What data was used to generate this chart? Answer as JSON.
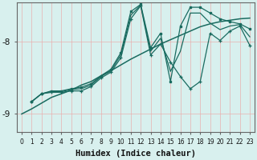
{
  "xlabel": "Humidex (Indice chaleur)",
  "xlim": [
    -0.5,
    23.5
  ],
  "ylim": [
    -9.25,
    -7.45
  ],
  "yticks": [
    -9,
    -8
  ],
  "background_color": "#d8f0ee",
  "grid_color_r": 255,
  "grid_color_g": 180,
  "grid_color_b": 180,
  "line_color": "#1a6b60",
  "line1_x": [
    0,
    1,
    2,
    3,
    4,
    5,
    6,
    7,
    8,
    9,
    10,
    11,
    12,
    13,
    14,
    15,
    16,
    17,
    18,
    19,
    20,
    21,
    22,
    23
  ],
  "line1_y": [
    -9.0,
    -8.93,
    -8.85,
    -8.77,
    -8.72,
    -8.67,
    -8.6,
    -8.55,
    -8.47,
    -8.4,
    -8.32,
    -8.24,
    -8.17,
    -8.1,
    -8.03,
    -7.97,
    -7.91,
    -7.85,
    -7.79,
    -7.75,
    -7.72,
    -7.7,
    -7.68,
    -7.67
  ],
  "line2_x": [
    1,
    2,
    3,
    4,
    5,
    6,
    7,
    8,
    9,
    10,
    11,
    12,
    13,
    14,
    15,
    16,
    17,
    18,
    19,
    20,
    21,
    22,
    23
  ],
  "line2_y": [
    -8.83,
    -8.72,
    -8.7,
    -8.7,
    -8.68,
    -8.68,
    -8.62,
    -8.5,
    -8.42,
    -8.22,
    -7.68,
    -7.5,
    -8.18,
    -8.03,
    -8.28,
    -8.48,
    -8.65,
    -8.55,
    -7.88,
    -7.98,
    -7.85,
    -7.78,
    -8.05
  ],
  "line3_x": [
    1,
    2,
    3,
    4,
    5,
    6,
    7,
    8,
    9,
    10,
    11,
    12,
    13,
    14,
    15,
    16,
    17,
    18,
    19,
    20,
    21,
    22,
    23
  ],
  "line3_y": [
    -8.83,
    -8.72,
    -8.68,
    -8.68,
    -8.65,
    -8.63,
    -8.58,
    -8.47,
    -8.38,
    -8.15,
    -7.58,
    -7.48,
    -8.08,
    -7.88,
    -8.55,
    -7.78,
    -7.52,
    -7.52,
    -7.6,
    -7.68,
    -7.72,
    -7.75,
    -7.82
  ],
  "line4_x": [
    1,
    2,
    3,
    4,
    5,
    6,
    7,
    8,
    9,
    10,
    11,
    12,
    13,
    14,
    15,
    16,
    17,
    18,
    19,
    20,
    21,
    22,
    23
  ],
  "line4_y": [
    -8.83,
    -8.72,
    -8.69,
    -8.69,
    -8.66,
    -8.65,
    -8.6,
    -8.48,
    -8.4,
    -8.18,
    -7.63,
    -7.49,
    -8.13,
    -7.95,
    -8.41,
    -8.13,
    -7.6,
    -7.6,
    -7.74,
    -7.83,
    -7.78,
    -7.76,
    -7.93
  ],
  "xtick_fontsize": 5.5,
  "ytick_fontsize": 7.5,
  "xlabel_fontsize": 7.5
}
